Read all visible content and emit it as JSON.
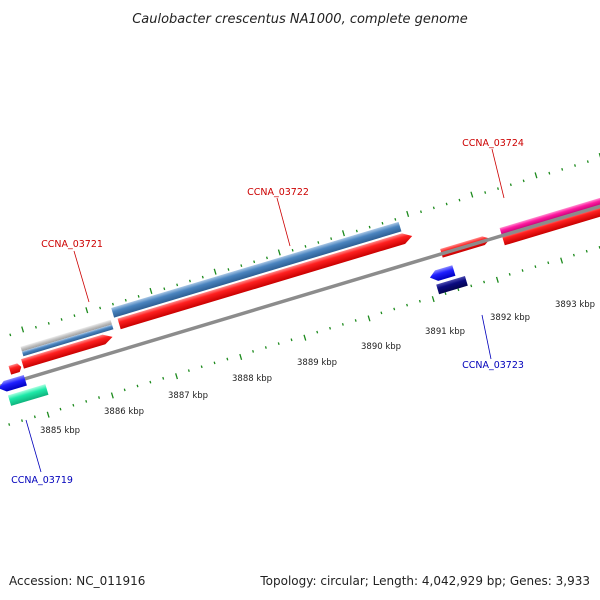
{
  "title": "Caulobacter crescentus NA1000, complete genome",
  "footer": {
    "accession": "Accession: NC_011916",
    "summary": "Topology: circular; Length: 4,042,929 bp; Genes: 3,933"
  },
  "colors": {
    "forward_label": "#cc0000",
    "reverse_label": "#0000bb",
    "backbone": "#8c8c8c",
    "ticks": "#1c8a1c",
    "red_feature": "#ff1a1a",
    "steel_blue_feature": "#4a84bf",
    "grey_feature": "#c4c4c4",
    "magenta_feature": "#ff1aa0",
    "blue_feature": "#1f1fff",
    "navy_feature": "#0a0a80",
    "teal_feature": "#1de9a8"
  },
  "scale": {
    "tick_labels": [
      "3885 kbp",
      "3886 kbp",
      "3887 kbp",
      "3888 kbp",
      "3889 kbp",
      "3890 kbp",
      "3891 kbp",
      "3892 kbp",
      "3893 kbp"
    ]
  },
  "genes": [
    {
      "name": "CCNA_03721",
      "strand": "forward"
    },
    {
      "name": "CCNA_03722",
      "strand": "forward"
    },
    {
      "name": "CCNA_03724",
      "strand": "forward"
    },
    {
      "name": "CCNA_03723",
      "strand": "reverse"
    },
    {
      "name": "CCNA_03719",
      "strand": "reverse"
    }
  ]
}
